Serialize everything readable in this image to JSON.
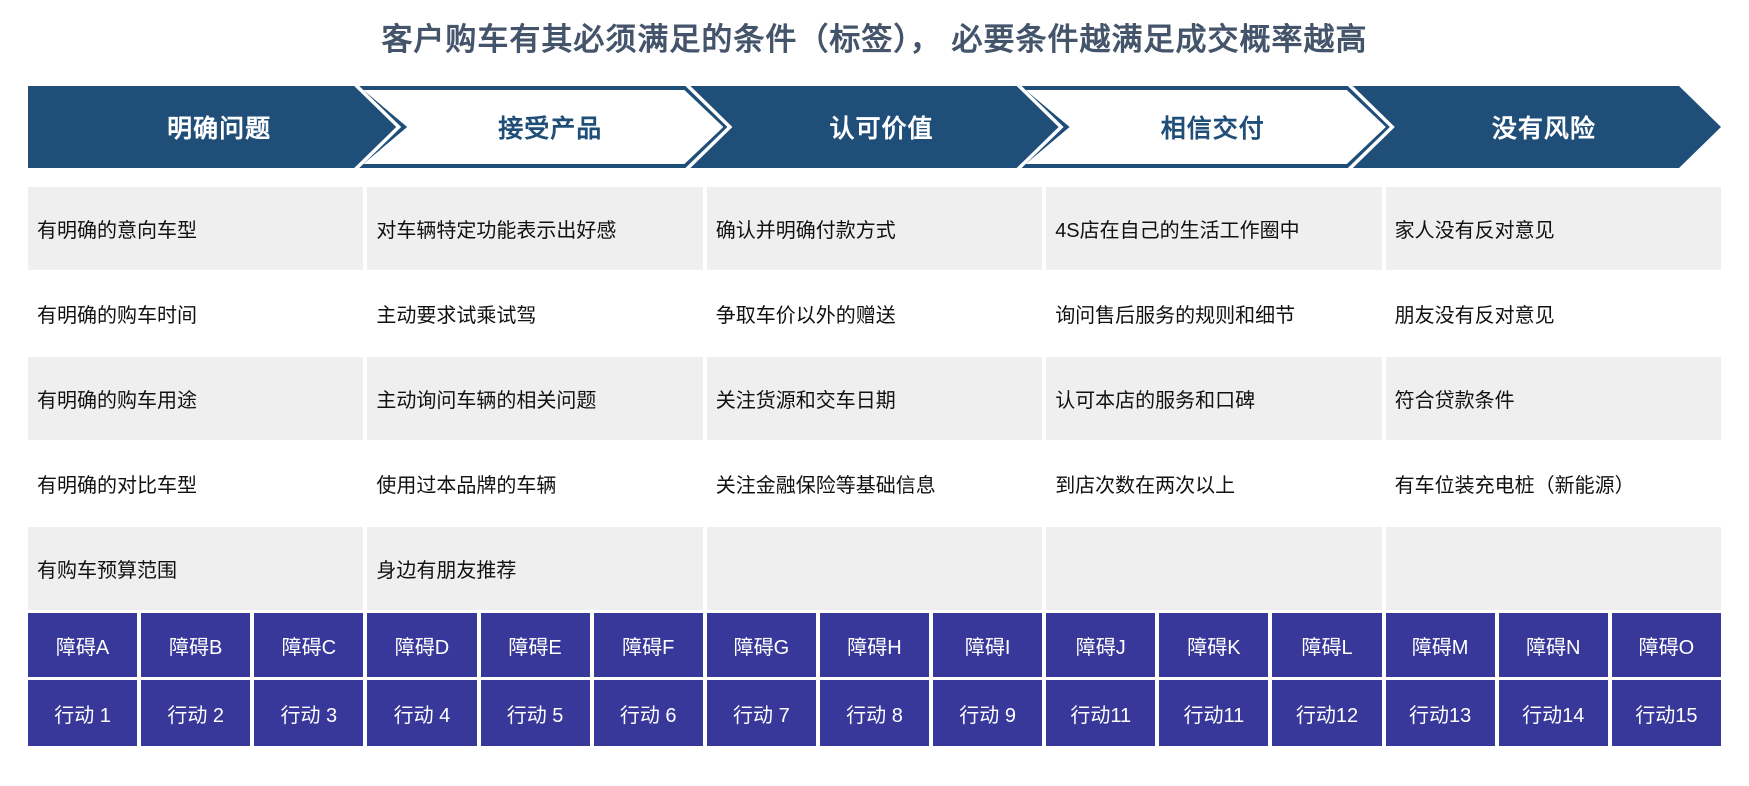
{
  "title": "客户购车有其必须满足的条件（标签）， 必要条件越满足成交概率越高",
  "stages": [
    {
      "label": "明确问题",
      "style": "solid"
    },
    {
      "label": "接受产品",
      "style": "outline"
    },
    {
      "label": "认可价值",
      "style": "solid"
    },
    {
      "label": "相信交付",
      "style": "outline"
    },
    {
      "label": "没有风险",
      "style": "solid"
    }
  ],
  "criteria_rows": [
    [
      "有明确的意向车型",
      "对车辆特定功能表示出好感",
      "确认并明确付款方式",
      "4S店在自己的生活工作圈中",
      "家人没有反对意见"
    ],
    [
      "有明确的购车时间",
      "主动要求试乘试驾",
      "争取车价以外的赠送",
      "询问售后服务的规则和细节",
      "朋友没有反对意见"
    ],
    [
      "有明确的购车用途",
      "主动询问车辆的相关问题",
      "关注货源和交车日期",
      "认可本店的服务和口碑",
      "符合贷款条件"
    ],
    [
      "有明确的对比车型",
      "使用过本品牌的车辆",
      "关注金融保险等基础信息",
      "到店次数在两次以上",
      "有车位装充电桩（新能源）"
    ],
    [
      "有购车预算范围",
      "身边有朋友推荐",
      "",
      "",
      ""
    ]
  ],
  "obstacles": [
    "障碍A",
    "障碍B",
    "障碍C",
    "障碍D",
    "障碍E",
    "障碍F",
    "障碍G",
    "障碍H",
    "障碍I",
    "障碍J",
    "障碍K",
    "障碍L",
    "障碍M",
    "障碍N",
    "障碍O"
  ],
  "actions": [
    "行动 1",
    "行动 2",
    "行动 3",
    "行动 4",
    "行动 5",
    "行动 6",
    "行动 7",
    "行动 8",
    "行动 9",
    "行动11",
    "行动11",
    "行动12",
    "行动13",
    "行动14",
    "行动15"
  ],
  "colors": {
    "deep_blue": "#1F4E79",
    "indigo": "#38389B",
    "row_gray": "#EFEFEF",
    "title": "#44546A"
  }
}
